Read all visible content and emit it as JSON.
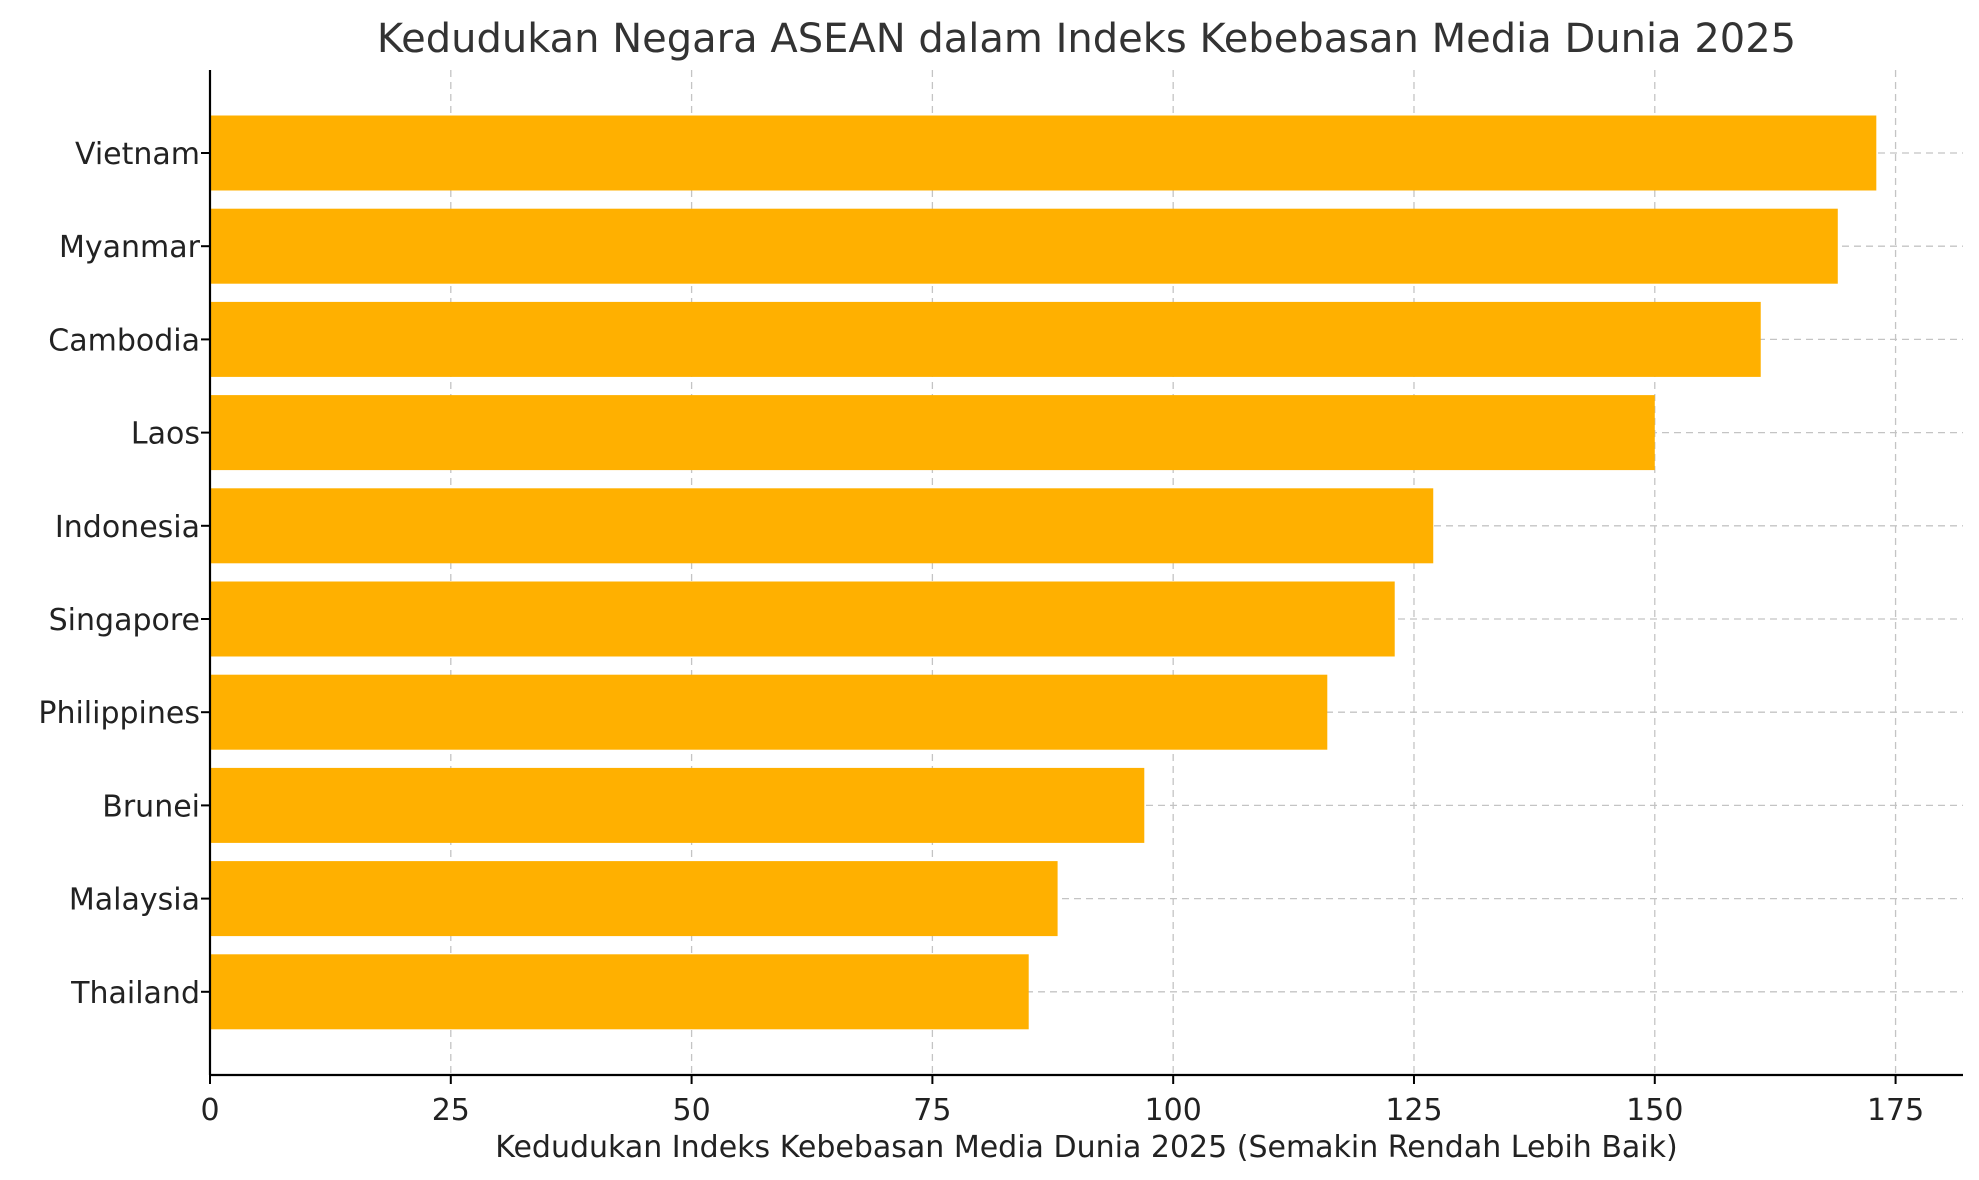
{
  "chart_data": {
    "type": "bar",
    "orientation": "horizontal",
    "title": "Kedudukan Negara ASEAN dalam Indeks Kebebasan Media Dunia 2025",
    "xlabel": "Kedudukan Indeks Kebebasan Media Dunia 2025 (Semakin Rendah Lebih Baik)",
    "ylabel": "",
    "categories": [
      "Vietnam",
      "Myanmar",
      "Cambodia",
      "Laos",
      "Indonesia",
      "Singapore",
      "Philippines",
      "Brunei",
      "Malaysia",
      "Thailand"
    ],
    "values": [
      173,
      169,
      161,
      150,
      127,
      123,
      116,
      97,
      88,
      85
    ],
    "xlim": [
      0,
      182
    ],
    "xticks": [
      0,
      25,
      50,
      75,
      100,
      125,
      150,
      175
    ],
    "xtick_labels": [
      "0",
      "25",
      "50",
      "75",
      "100",
      "125",
      "150",
      "175"
    ],
    "grid": true,
    "bar_color": "#FFB000"
  }
}
